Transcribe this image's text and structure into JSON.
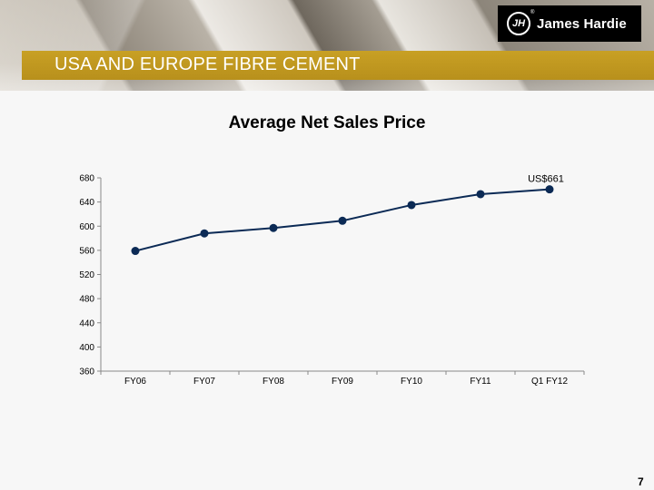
{
  "header": {
    "section_title": "USA AND EUROPE FIBRE CEMENT",
    "brand": "James Hardie",
    "brand_mark": "JH",
    "registered": "®",
    "logo_icon": "james-hardie-logo-icon"
  },
  "page_number": "7",
  "colors": {
    "accent_gold": "#c39a22",
    "series_line": "#0b2a55"
  },
  "chart_data": {
    "type": "line",
    "title": "Average Net Sales Price",
    "xlabel": "",
    "ylabel": "",
    "categories": [
      "FY06",
      "FY07",
      "FY08",
      "FY09",
      "FY10",
      "FY11",
      "Q1 FY12"
    ],
    "series": [
      {
        "values": [
          559,
          588,
          597,
          609,
          635,
          653,
          661
        ]
      }
    ],
    "ylim": [
      360,
      680
    ],
    "yticks": [
      360,
      400,
      440,
      480,
      520,
      560,
      600,
      640,
      680
    ],
    "grid": false,
    "legend": "none",
    "annotations": [
      {
        "category": "Q1 FY12",
        "text": "US$661"
      }
    ]
  }
}
